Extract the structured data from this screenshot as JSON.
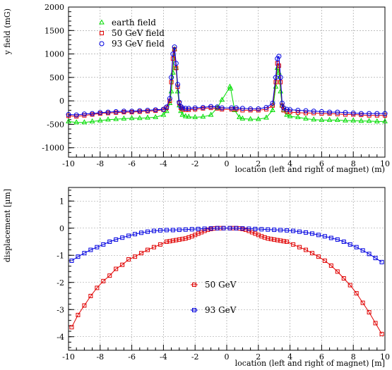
{
  "chart_data": [
    {
      "type": "line",
      "xlabel": "location (left and right of magnet) (m)",
      "ylabel": "y field (mG)",
      "xlim": [
        -10,
        10
      ],
      "ylim": [
        -1200,
        2000
      ],
      "xticks": [
        -10,
        -8,
        -6,
        -4,
        -2,
        0,
        2,
        4,
        6,
        8,
        10
      ],
      "yticks": [
        -1000,
        -500,
        0,
        500,
        1000,
        1500,
        2000
      ],
      "grid": true,
      "legend_position": "top-left",
      "series": [
        {
          "name": "earth field",
          "color": "#00dd00",
          "marker": "triangle",
          "x": [
            -10,
            -9.5,
            -9,
            -8.5,
            -8,
            -7.5,
            -7,
            -6.5,
            -6,
            -5.5,
            -5,
            -4.5,
            -4,
            -3.8,
            -3.6,
            -3.5,
            -3.4,
            -3.3,
            -3.2,
            -3.1,
            -3.0,
            -2.9,
            -2.8,
            -2.6,
            -2.4,
            -2.0,
            -1.5,
            -1.0,
            -0.6,
            -0.3,
            0.2,
            0.25,
            0.5,
            0.8,
            1.0,
            1.5,
            2.0,
            2.5,
            2.9,
            3.1,
            3.2,
            3.3,
            3.4,
            3.5,
            3.6,
            3.8,
            4.0,
            4.5,
            5,
            5.5,
            6,
            6.5,
            7,
            7.5,
            8,
            8.5,
            9,
            9.5,
            10
          ],
          "y": [
            -440,
            -460,
            -460,
            -440,
            -420,
            -400,
            -390,
            -380,
            -370,
            -370,
            -360,
            -350,
            -300,
            -220,
            -50,
            200,
            600,
            1100,
            700,
            200,
            -100,
            -220,
            -300,
            -330,
            -340,
            -350,
            -340,
            -300,
            -150,
            20,
            300,
            260,
            -200,
            -350,
            -380,
            -390,
            -390,
            -360,
            -200,
            300,
            700,
            600,
            200,
            -100,
            -200,
            -300,
            -330,
            -350,
            -380,
            -400,
            -410,
            -410,
            -410,
            -420,
            -420,
            -430,
            -430,
            -440,
            -440
          ]
        },
        {
          "name": "50 GeV field",
          "color": "#e00000",
          "marker": "square",
          "x": [
            -10,
            -9.5,
            -9,
            -8.5,
            -8,
            -7.5,
            -7,
            -6.5,
            -6,
            -5.5,
            -5,
            -4.5,
            -4,
            -3.8,
            -3.6,
            -3.5,
            -3.4,
            -3.3,
            -3.2,
            -3.1,
            -3.0,
            -2.9,
            -2.8,
            -2.6,
            -2.4,
            -2.0,
            -1.5,
            -1.0,
            -0.6,
            -0.3,
            0.3,
            0.6,
            1.0,
            1.5,
            2.0,
            2.5,
            2.9,
            3.1,
            3.2,
            3.3,
            3.4,
            3.5,
            3.6,
            3.8,
            4.0,
            4.5,
            5,
            5.5,
            6,
            6.5,
            7,
            7.5,
            8,
            8.5,
            9,
            9.5,
            10
          ],
          "y": [
            -320,
            -330,
            -310,
            -290,
            -270,
            -260,
            -250,
            -240,
            -240,
            -230,
            -220,
            -210,
            -190,
            -150,
            0,
            400,
            900,
            1100,
            700,
            300,
            -50,
            -150,
            -180,
            -190,
            -190,
            -180,
            -160,
            -150,
            -160,
            -180,
            -180,
            -180,
            -200,
            -200,
            -200,
            -180,
            -100,
            400,
            800,
            750,
            400,
            -100,
            -200,
            -230,
            -240,
            -250,
            -260,
            -260,
            -270,
            -270,
            -280,
            -290,
            -290,
            -300,
            -310,
            -310,
            -310
          ]
        },
        {
          "name": "93 GeV field",
          "color": "#0000e0",
          "marker": "circle",
          "x": [
            -10,
            -9.5,
            -9,
            -8.5,
            -8,
            -7.5,
            -7,
            -6.5,
            -6,
            -5.5,
            -5,
            -4.5,
            -4,
            -3.8,
            -3.6,
            -3.5,
            -3.4,
            -3.3,
            -3.2,
            -3.1,
            -3.0,
            -2.9,
            -2.8,
            -2.6,
            -2.4,
            -2.0,
            -1.5,
            -1.0,
            -0.6,
            -0.3,
            0.3,
            0.6,
            1.0,
            1.5,
            2.0,
            2.5,
            2.9,
            3.1,
            3.2,
            3.3,
            3.4,
            3.5,
            3.6,
            3.8,
            4.0,
            4.5,
            5,
            5.5,
            6,
            6.5,
            7,
            7.5,
            8,
            8.5,
            9,
            9.5,
            10
          ],
          "y": [
            -290,
            -300,
            -280,
            -270,
            -250,
            -240,
            -230,
            -220,
            -220,
            -210,
            -200,
            -190,
            -180,
            -130,
            50,
            500,
            1000,
            1150,
            800,
            350,
            -30,
            -120,
            -150,
            -160,
            -160,
            -150,
            -140,
            -120,
            -130,
            -150,
            -150,
            -150,
            -160,
            -170,
            -170,
            -140,
            -50,
            500,
            900,
            950,
            500,
            -50,
            -150,
            -180,
            -190,
            -200,
            -210,
            -220,
            -230,
            -240,
            -240,
            -250,
            -260,
            -270,
            -270,
            -270,
            -270
          ]
        }
      ]
    },
    {
      "type": "line",
      "xlabel": "location (left and right of magnet) [m]",
      "ylabel": "displacement [µm]",
      "xlim": [
        -10,
        10
      ],
      "ylim": [
        -4.5,
        1.5
      ],
      "xticks": [
        -10,
        -8,
        -6,
        -4,
        -2,
        0,
        2,
        4,
        6,
        8,
        10
      ],
      "yticks": [
        -4,
        -3,
        -2,
        -1,
        0,
        1
      ],
      "grid": true,
      "legend_position": "center",
      "series": [
        {
          "name": "50 GeV",
          "color": "#e00000",
          "marker": "square",
          "x": [
            -9.8,
            -9.4,
            -9.0,
            -8.6,
            -8.2,
            -7.8,
            -7.4,
            -7.0,
            -6.6,
            -6.2,
            -5.8,
            -5.4,
            -5.0,
            -4.6,
            -4.2,
            -3.8,
            -3.6,
            -3.4,
            -3.2,
            -3.0,
            -2.8,
            -2.6,
            -2.4,
            -2.2,
            -2.0,
            -1.8,
            -1.6,
            -1.4,
            -1.2,
            -1.0,
            -0.8,
            -0.6,
            -0.4,
            -0.2,
            0.2,
            0.4,
            0.6,
            0.8,
            1.0,
            1.2,
            1.4,
            1.6,
            1.8,
            2.0,
            2.2,
            2.4,
            2.6,
            2.8,
            3.0,
            3.2,
            3.4,
            3.6,
            3.8,
            4.2,
            4.6,
            5.0,
            5.4,
            5.8,
            6.2,
            6.6,
            7.0,
            7.4,
            7.8,
            8.2,
            8.6,
            9.0,
            9.4,
            9.8
          ],
          "y": [
            -3.65,
            -3.2,
            -2.85,
            -2.5,
            -2.2,
            -1.95,
            -1.75,
            -1.5,
            -1.35,
            -1.15,
            -1.05,
            -0.92,
            -0.8,
            -0.7,
            -0.6,
            -0.5,
            -0.48,
            -0.46,
            -0.44,
            -0.42,
            -0.4,
            -0.38,
            -0.34,
            -0.3,
            -0.25,
            -0.2,
            -0.15,
            -0.1,
            -0.06,
            -0.03,
            -0.01,
            0,
            0,
            0,
            0,
            0,
            0,
            -0.01,
            -0.03,
            -0.06,
            -0.1,
            -0.15,
            -0.2,
            -0.25,
            -0.3,
            -0.34,
            -0.38,
            -0.4,
            -0.42,
            -0.44,
            -0.46,
            -0.48,
            -0.5,
            -0.6,
            -0.7,
            -0.8,
            -0.92,
            -1.05,
            -1.2,
            -1.38,
            -1.6,
            -1.85,
            -2.1,
            -2.4,
            -2.75,
            -3.1,
            -3.5,
            -3.9
          ]
        },
        {
          "name": "93 GeV",
          "color": "#0000e0",
          "marker": "square",
          "x": [
            -9.8,
            -9.4,
            -9.0,
            -8.6,
            -8.2,
            -7.8,
            -7.4,
            -7.0,
            -6.6,
            -6.2,
            -5.8,
            -5.4,
            -5.0,
            -4.6,
            -4.2,
            -3.8,
            -3.4,
            -3.0,
            -2.6,
            -2.2,
            -1.8,
            -1.4,
            -1.0,
            -0.6,
            -0.2,
            0.2,
            0.6,
            1.0,
            1.4,
            1.8,
            2.2,
            2.6,
            3.0,
            3.4,
            3.8,
            4.2,
            4.6,
            5.0,
            5.4,
            5.8,
            6.2,
            6.6,
            7.0,
            7.4,
            7.8,
            8.2,
            8.6,
            9.0,
            9.4,
            9.8
          ],
          "y": [
            -1.2,
            -1.05,
            -0.92,
            -0.8,
            -0.7,
            -0.6,
            -0.5,
            -0.42,
            -0.35,
            -0.28,
            -0.22,
            -0.17,
            -0.13,
            -0.1,
            -0.08,
            -0.07,
            -0.07,
            -0.06,
            -0.05,
            -0.04,
            -0.03,
            -0.02,
            -0.01,
            0,
            0,
            0,
            0,
            -0.01,
            -0.02,
            -0.03,
            -0.04,
            -0.05,
            -0.06,
            -0.07,
            -0.08,
            -0.1,
            -0.13,
            -0.16,
            -0.2,
            -0.25,
            -0.3,
            -0.36,
            -0.42,
            -0.5,
            -0.6,
            -0.7,
            -0.82,
            -0.95,
            -1.1,
            -1.25
          ]
        }
      ]
    }
  ]
}
